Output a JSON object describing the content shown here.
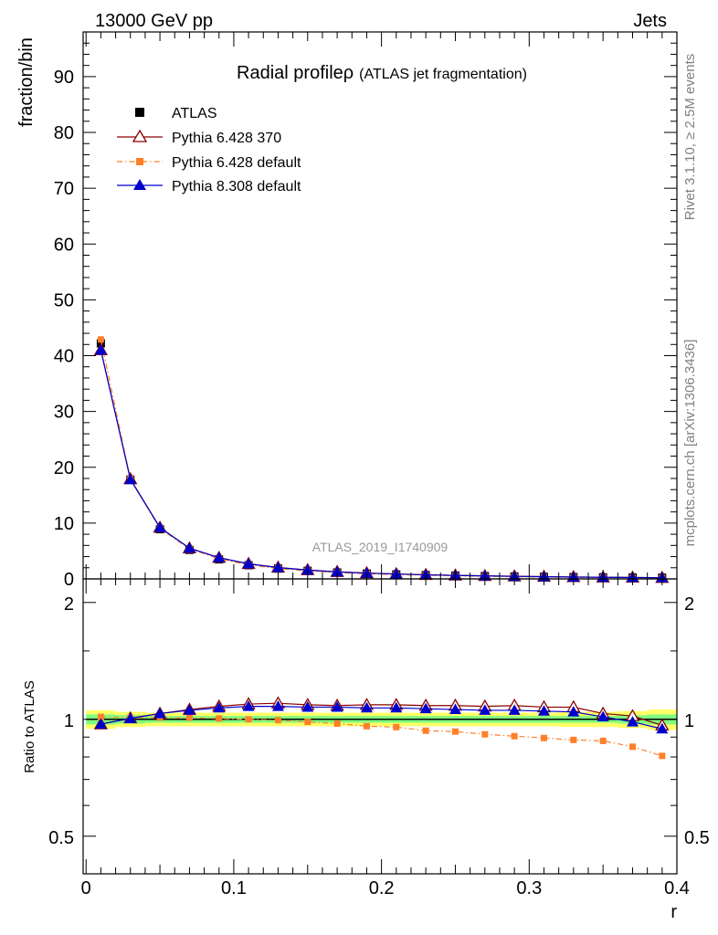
{
  "header": {
    "left": "13000 GeV pp",
    "right": "Jets"
  },
  "side_labels": {
    "top": "Rivet 3.1.10, ≥ 2.5M events",
    "bottom": "mcplots.cern.ch [arXiv:1306.3436]"
  },
  "watermark": "ATLAS_2019_I1740909",
  "chart_data": {
    "type": "line",
    "title": "Radial profile",
    "title_symbol": "ρ",
    "subtitle": "(ATLAS jet fragmentation)",
    "xlabel": "r",
    "ylabel": "fraction/bin",
    "ratio_ylabel": "Ratio to ATLAS",
    "xlim": [
      -0.002,
      0.4
    ],
    "ylim": [
      0,
      98
    ],
    "ratio_ylim": [
      0.4,
      2.3
    ],
    "ratio_scale": "log",
    "x_ticks": [
      "0",
      "0.1",
      "0.2",
      "0.3",
      "0.4"
    ],
    "y_ticks": [
      "0",
      "10",
      "20",
      "30",
      "40",
      "50",
      "60",
      "70",
      "80",
      "90"
    ],
    "ratio_ticks": [
      "0.5",
      "1",
      "2"
    ],
    "legend_position": "top-left",
    "colors": {
      "data": "#000000",
      "p6_370": "#8b0000",
      "p6_default": "#ff7f27",
      "p8": "#0000cd",
      "band_inner": "#7fff7f",
      "band_outer": "#ffff66"
    },
    "x": [
      0.01,
      0.03,
      0.05,
      0.07,
      0.09,
      0.11,
      0.13,
      0.15,
      0.17,
      0.19,
      0.21,
      0.23,
      0.25,
      0.27,
      0.29,
      0.31,
      0.33,
      0.35,
      0.37,
      0.39
    ],
    "data": {
      "name": "ATLAS",
      "values": [
        42.2,
        17.8,
        8.9,
        5.2,
        3.5,
        2.45,
        1.85,
        1.45,
        1.15,
        0.95,
        0.8,
        0.68,
        0.58,
        0.5,
        0.43,
        0.37,
        0.32,
        0.28,
        0.25,
        0.22
      ]
    },
    "series": [
      {
        "name": "Pythia 6.428 370",
        "values": [
          41.0,
          17.9,
          9.2,
          5.5,
          3.8,
          2.7,
          2.05,
          1.6,
          1.27,
          1.05,
          0.88,
          0.75,
          0.64,
          0.55,
          0.47,
          0.41,
          0.35,
          0.29,
          0.26,
          0.21
        ],
        "ratio": [
          0.972,
          1.007,
          1.035,
          1.06,
          1.08,
          1.095,
          1.1,
          1.09,
          1.085,
          1.09,
          1.09,
          1.085,
          1.085,
          1.08,
          1.085,
          1.075,
          1.075,
          1.035,
          1.02,
          0.965
        ]
      },
      {
        "name": "Pythia 6.428 default",
        "values": [
          42.9,
          17.9,
          9.0,
          5.4,
          3.6,
          2.5,
          1.85,
          1.45,
          1.13,
          0.92,
          0.77,
          0.64,
          0.54,
          0.46,
          0.39,
          0.33,
          0.29,
          0.25,
          0.21,
          0.18
        ],
        "ratio": [
          1.015,
          1.01,
          1.01,
          1.01,
          1.005,
          1.0,
          0.995,
          0.985,
          0.975,
          0.96,
          0.955,
          0.935,
          0.93,
          0.915,
          0.905,
          0.895,
          0.885,
          0.88,
          0.85,
          0.805
        ]
      },
      {
        "name": "Pythia 8.308 default",
        "values": [
          41.0,
          17.8,
          9.2,
          5.5,
          3.8,
          2.7,
          2.03,
          1.58,
          1.25,
          1.03,
          0.87,
          0.73,
          0.62,
          0.53,
          0.46,
          0.39,
          0.33,
          0.29,
          0.25,
          0.21
        ],
        "ratio": [
          0.972,
          1.005,
          1.035,
          1.055,
          1.07,
          1.08,
          1.08,
          1.075,
          1.075,
          1.07,
          1.07,
          1.065,
          1.06,
          1.055,
          1.055,
          1.05,
          1.045,
          1.015,
          0.985,
          0.945
        ]
      }
    ],
    "band_inner": [
      0.03,
      0.025,
      0.02,
      0.02,
      0.02,
      0.02,
      0.02,
      0.02,
      0.02,
      0.02,
      0.02,
      0.02,
      0.02,
      0.02,
      0.02,
      0.02,
      0.02,
      0.02,
      0.025,
      0.03
    ],
    "band_outer": [
      0.055,
      0.045,
      0.04,
      0.04,
      0.04,
      0.04,
      0.04,
      0.04,
      0.04,
      0.04,
      0.04,
      0.04,
      0.04,
      0.04,
      0.04,
      0.04,
      0.045,
      0.045,
      0.05,
      0.06
    ]
  }
}
